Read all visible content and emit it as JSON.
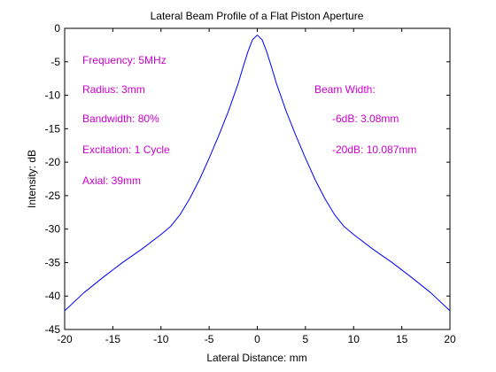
{
  "chart_data": {
    "type": "line",
    "title": "Lateral Beam Profile of a Flat Piston Aperture",
    "xlabel": "Lateral Distance: mm",
    "ylabel": "Intensity: dB",
    "xlim": [
      -20,
      20
    ],
    "ylim": [
      -45,
      0
    ],
    "xticks": [
      -20,
      -15,
      -10,
      -5,
      0,
      5,
      10,
      15,
      20
    ],
    "yticks": [
      0,
      -5,
      -10,
      -15,
      -20,
      -25,
      -30,
      -35,
      -40,
      -45
    ],
    "grid": false,
    "line_color": "#0000ff",
    "annotation_color": "#cc00cc",
    "series": [
      {
        "x": [
          -20,
          -18,
          -16,
          -14,
          -12,
          -10,
          -9,
          -8,
          -7,
          -6,
          -5,
          -4,
          -3,
          -2,
          -1.5,
          -1,
          -0.5,
          0,
          0.5,
          1,
          1.5,
          2,
          3,
          4,
          5,
          6,
          7,
          8,
          9,
          10,
          12,
          14,
          16,
          18,
          20
        ],
        "y": [
          -42.2,
          -39.5,
          -37.2,
          -35.0,
          -33.0,
          -30.8,
          -29.6,
          -27.8,
          -25.4,
          -22.6,
          -19.4,
          -16.0,
          -12.4,
          -8.3,
          -5.9,
          -3.6,
          -1.7,
          -1.0,
          -1.7,
          -3.6,
          -5.9,
          -8.3,
          -12.4,
          -16.0,
          -19.4,
          -22.6,
          -25.4,
          -27.8,
          -29.6,
          -30.8,
          -33.0,
          -35.0,
          -37.2,
          -39.5,
          -42.2
        ]
      }
    ],
    "annotations": {
      "frequency": "Frequency: 5MHz",
      "radius": "Radius: 3mm",
      "bandwidth": "Bandwidth: 80%",
      "excitation": "Excitation: 1 Cycle",
      "axial": "Axial: 39mm",
      "beam_width": "Beam Width:",
      "minus6db": "-6dB: 3.08mm",
      "minus20db": "-20dB: 10.087mm"
    }
  }
}
